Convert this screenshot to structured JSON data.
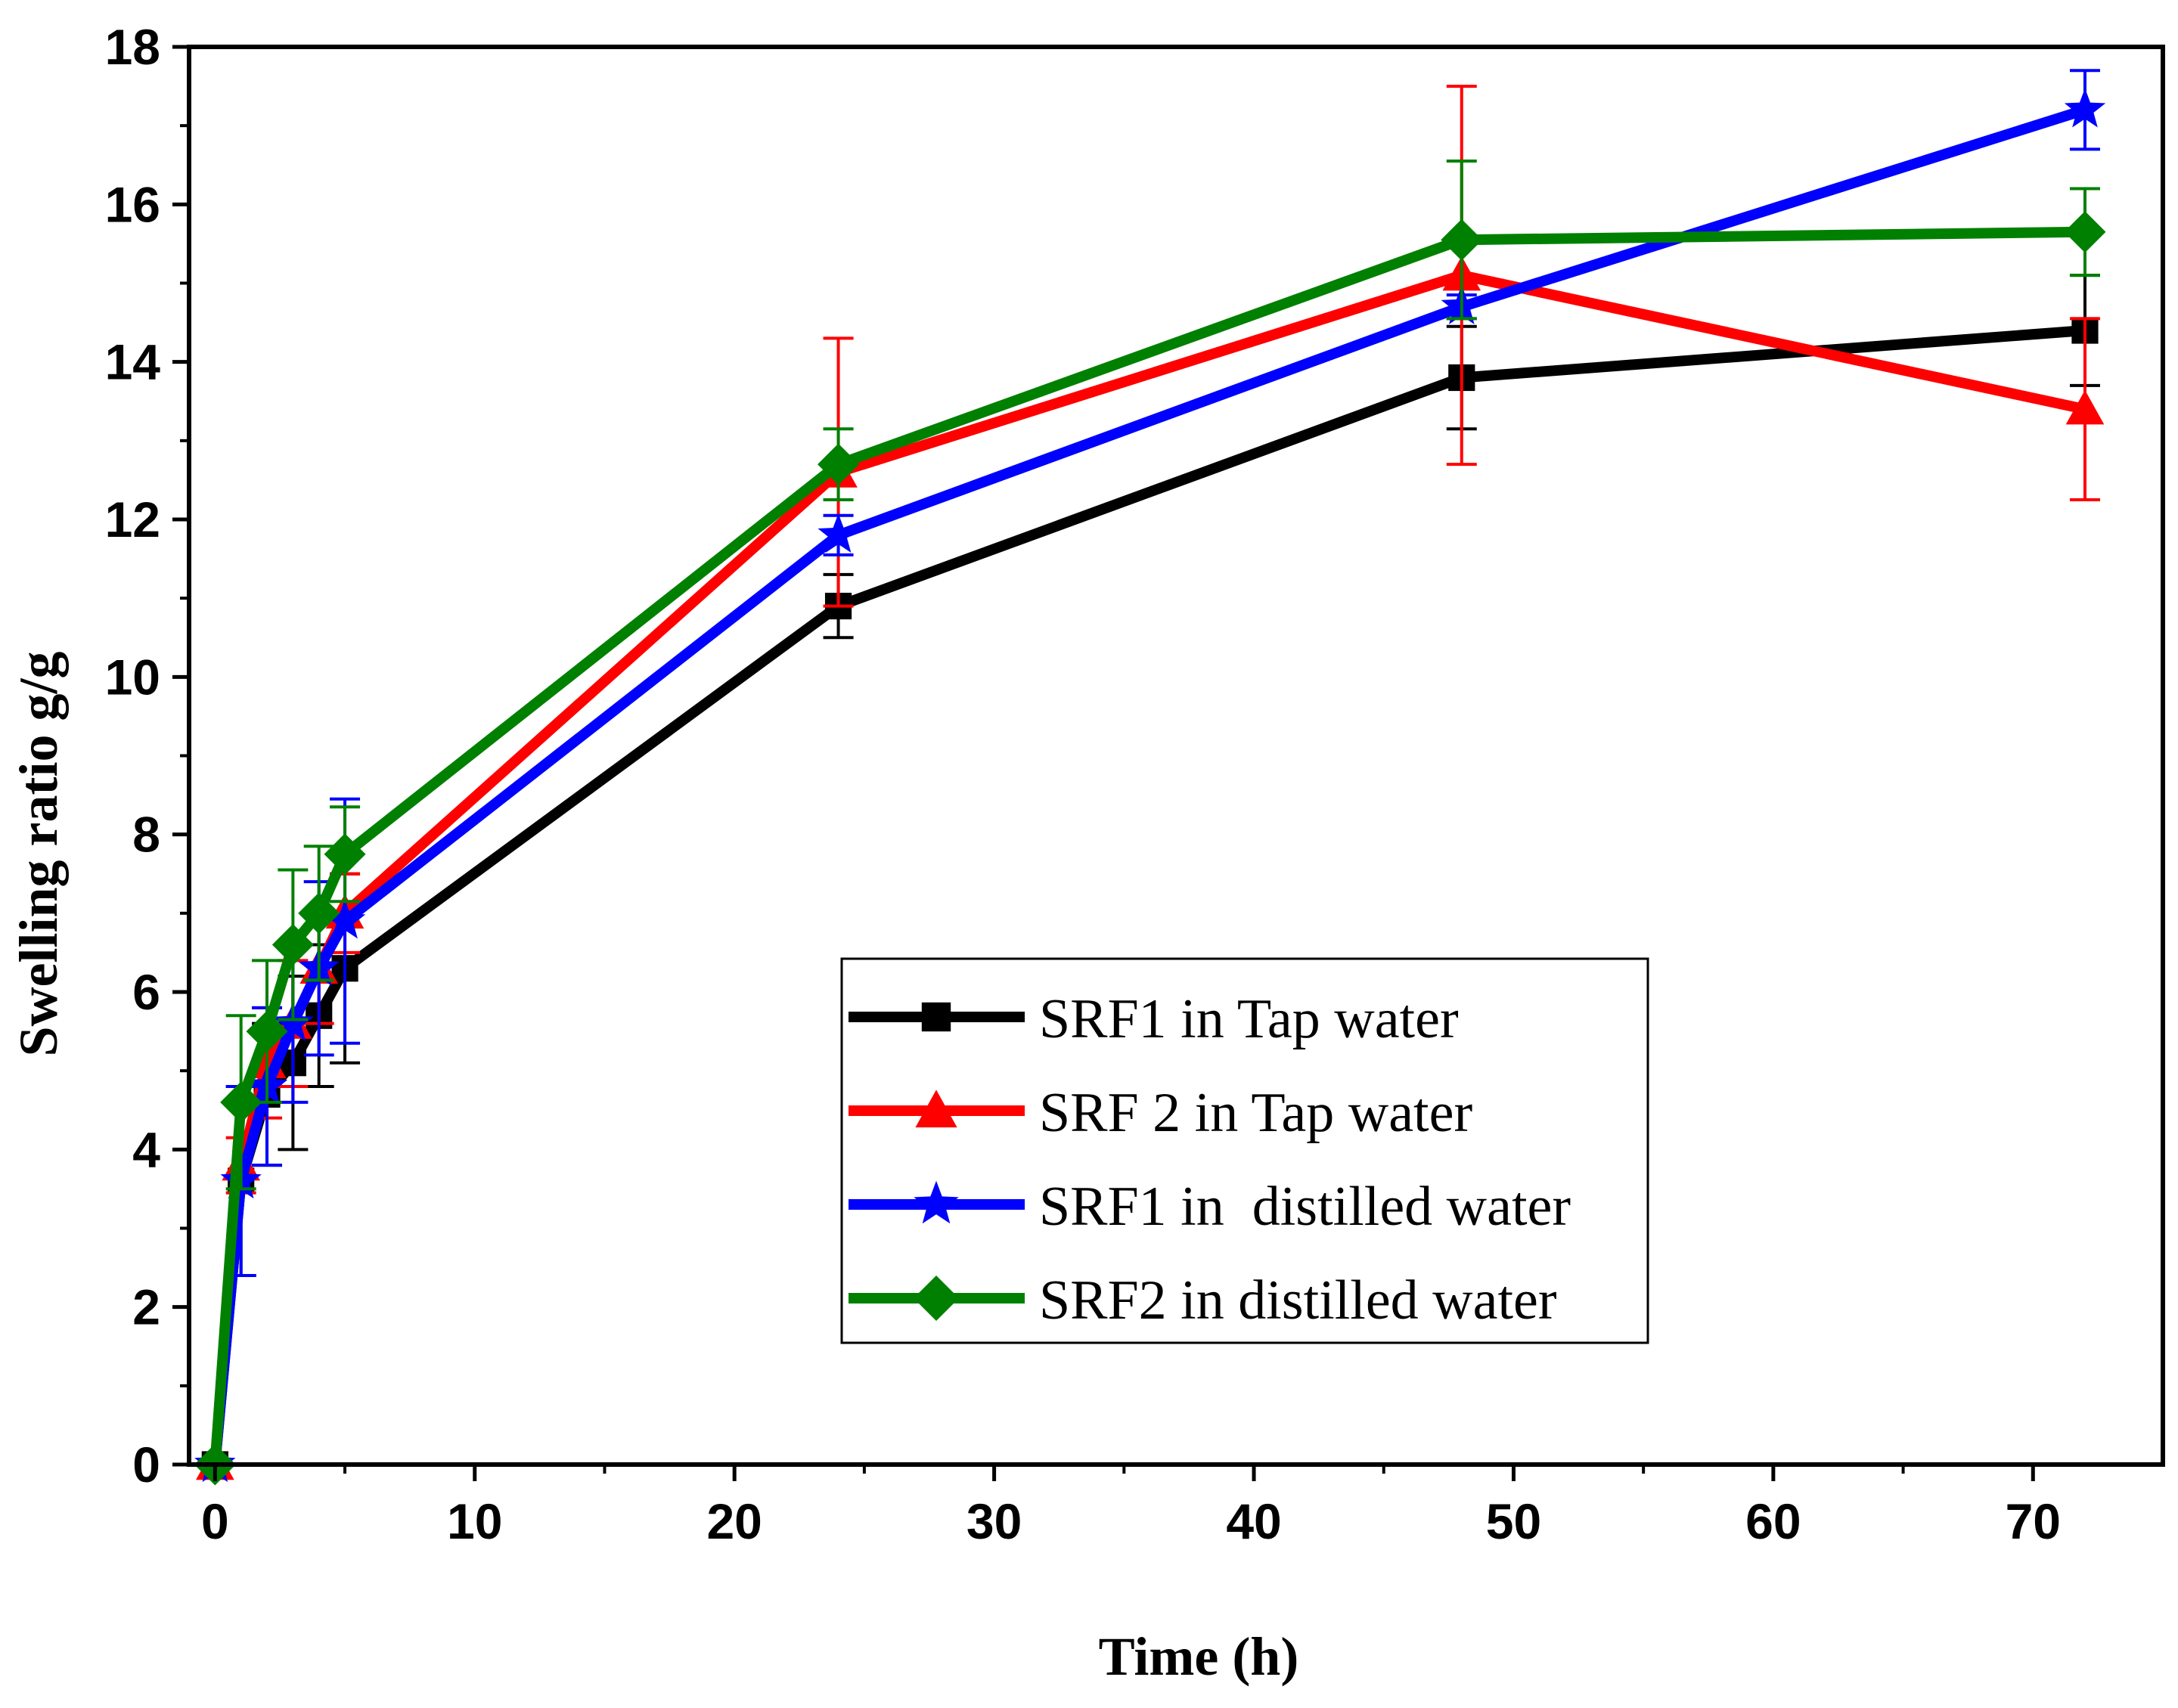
{
  "chart_data": {
    "type": "line",
    "title": "",
    "xlabel": "Time (h)",
    "ylabel": "Swelling ratio g/g",
    "xlim": [
      -1,
      75
    ],
    "ylim": [
      0,
      18
    ],
    "x_ticks": [
      "0",
      "10",
      "20",
      "30",
      "40",
      "50",
      "60",
      "70"
    ],
    "y_ticks": [
      "0",
      "2",
      "4",
      "6",
      "8",
      "10",
      "12",
      "14",
      "16",
      "18"
    ],
    "x_tick_values": [
      0,
      10,
      20,
      30,
      40,
      50,
      60,
      70
    ],
    "y_tick_values": [
      0,
      2,
      4,
      6,
      8,
      10,
      12,
      14,
      16,
      18
    ],
    "grid": false,
    "legend_position": "lower-right",
    "series": [
      {
        "name": "SRF1 in Tap water",
        "color": "#000000",
        "marker": "square",
        "x": [
          0,
          1,
          2,
          3,
          4,
          5,
          24,
          48,
          72
        ],
        "y": [
          0,
          3.6,
          4.7,
          5.1,
          5.7,
          6.3,
          10.9,
          13.8,
          14.4
        ],
        "err": [
          0,
          1.2,
          0.9,
          1.1,
          0.9,
          1.2,
          0.4,
          0.65,
          0.7
        ]
      },
      {
        "name": "SRF 2 in Tap water",
        "color": "#ff0000",
        "marker": "triangle",
        "x": [
          0,
          1,
          2,
          3,
          4,
          5,
          24,
          48,
          72
        ],
        "y": [
          0,
          3.8,
          5.1,
          5.6,
          6.3,
          7.0,
          12.6,
          15.1,
          13.4
        ],
        "err": [
          0,
          0.35,
          0.7,
          0.8,
          0.7,
          0.5,
          1.7,
          2.4,
          1.15
        ]
      },
      {
        "name": "SRF1 in  distilled water",
        "color": "#0000ff",
        "marker": "star",
        "x": [
          0,
          1,
          2,
          3,
          4,
          5,
          24,
          48,
          72
        ],
        "y": [
          0,
          3.6,
          4.8,
          5.6,
          6.3,
          6.9,
          11.8,
          14.7,
          17.2
        ],
        "err": [
          0,
          1.2,
          1.0,
          1.0,
          1.1,
          1.55,
          0.25,
          0.15,
          0.5
        ]
      },
      {
        "name": "SRF2 in distilled water",
        "color": "#008000",
        "marker": "diamond",
        "x": [
          0,
          1,
          2,
          3,
          4,
          5,
          24,
          48,
          72
        ],
        "y": [
          0,
          4.6,
          5.5,
          6.6,
          7.0,
          7.75,
          12.7,
          15.55,
          15.65
        ],
        "err": [
          0,
          1.1,
          0.9,
          0.95,
          0.85,
          0.6,
          0.45,
          1.0,
          0.55
        ]
      }
    ]
  }
}
